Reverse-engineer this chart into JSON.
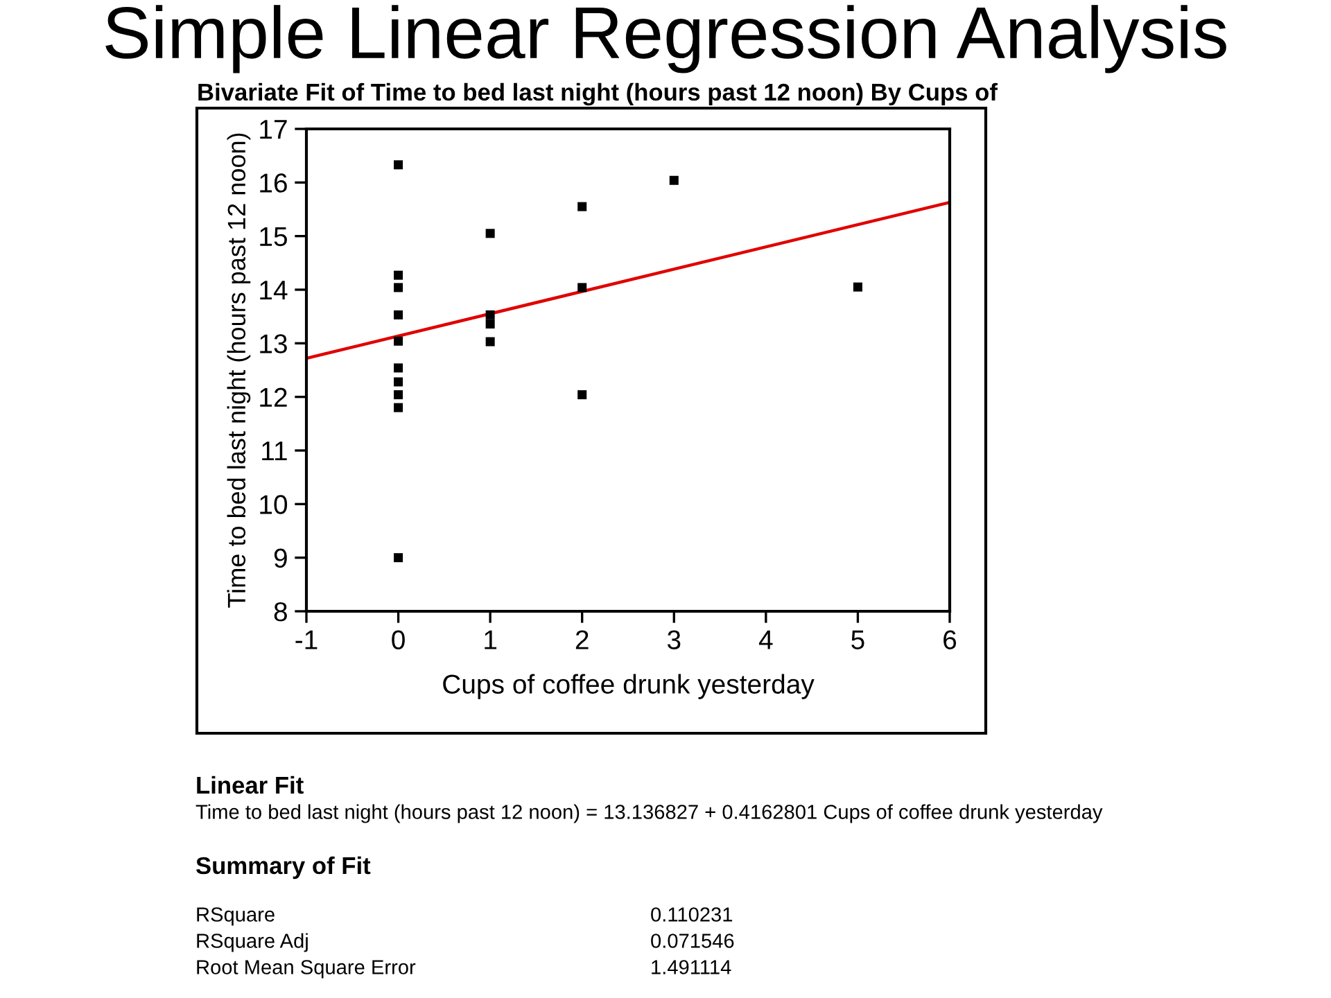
{
  "chart_data": {
    "type": "scatter",
    "title": "Simple Linear Regression Analysis",
    "subtitle": "Bivariate Fit of Time to bed last night (hours past 12 noon) By Cups of",
    "xlabel": "Cups of coffee drunk yesterday",
    "ylabel": "Time to bed last night (hours past 12 noon)",
    "x": [
      0,
      0,
      0,
      0,
      0,
      0,
      0,
      0,
      0,
      0,
      1,
      1,
      1,
      1,
      2,
      2,
      2,
      3,
      5
    ],
    "series": [
      {
        "color": "#000000",
        "marker": "square",
        "values": [
          16.33,
          14.27,
          14.04,
          13.53,
          13.04,
          12.54,
          12.28,
          12.04,
          11.8,
          9.0,
          15.05,
          13.53,
          13.36,
          13.03,
          15.55,
          14.04,
          12.04,
          16.04,
          14.05
        ]
      },
      {
        "type": "line",
        "color": "#e00000",
        "x": [
          -1,
          6
        ],
        "values": [
          12.72,
          15.63
        ],
        "line_style": "solid",
        "marker": "none"
      }
    ],
    "xlim": [
      -1,
      6
    ],
    "ylim": [
      8,
      17
    ],
    "xticks": [
      -1,
      0,
      1,
      2,
      3,
      4,
      5,
      6
    ],
    "yticks": [
      8,
      9,
      10,
      11,
      12,
      13,
      14,
      15,
      16,
      17
    ],
    "grid": false,
    "legend": false,
    "annotations": [
      "Linear Fit",
      "Time to bed last night (hours past 12 noon) = 13.136827 + 0.4162801 Cups of coffee drunk yesterday",
      "Summary of Fit",
      "RSquare",
      "0.110231",
      "RSquare Adj",
      "0.071546",
      "Root Mean Square Error",
      "1.491114"
    ]
  }
}
